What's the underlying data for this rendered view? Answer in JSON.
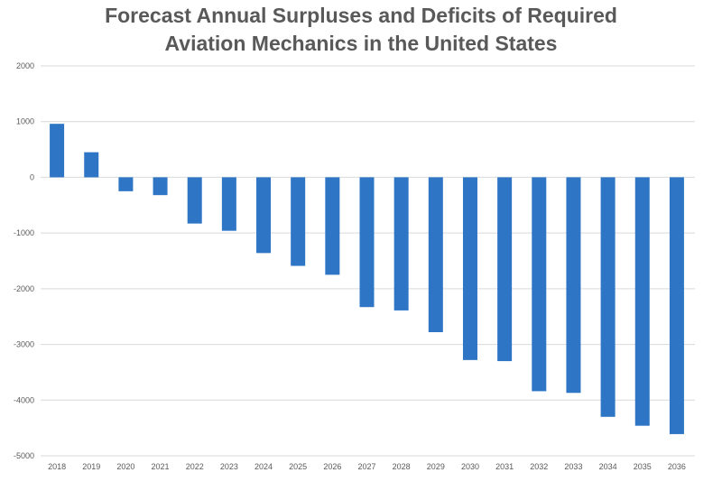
{
  "chart_data": {
    "type": "bar",
    "title_lines": [
      "Forecast Annual Surpluses and Deficits of Required",
      "Aviation Mechanics in the United States"
    ],
    "xlabel": "",
    "ylabel": "",
    "categories": [
      "2018",
      "2019",
      "2020",
      "2021",
      "2022",
      "2023",
      "2024",
      "2025",
      "2026",
      "2027",
      "2028",
      "2029",
      "2030",
      "2031",
      "2032",
      "2033",
      "2034",
      "2035",
      "2036"
    ],
    "values": [
      960,
      450,
      -250,
      -320,
      -830,
      -960,
      -1360,
      -1590,
      -1750,
      -2330,
      -2390,
      -2780,
      -3280,
      -3300,
      -3840,
      -3870,
      -4300,
      -4460,
      -4610
    ],
    "yticks": [
      "2000",
      "1000",
      "0",
      "-1000",
      "-2000",
      "-3000",
      "-4000",
      "-5000"
    ],
    "ylim": [
      -5000,
      2000
    ],
    "grid": true,
    "legend": "none",
    "colors": {
      "bar": "#2E75C6",
      "grid": "#D9D9D9",
      "text": "#595959"
    }
  }
}
